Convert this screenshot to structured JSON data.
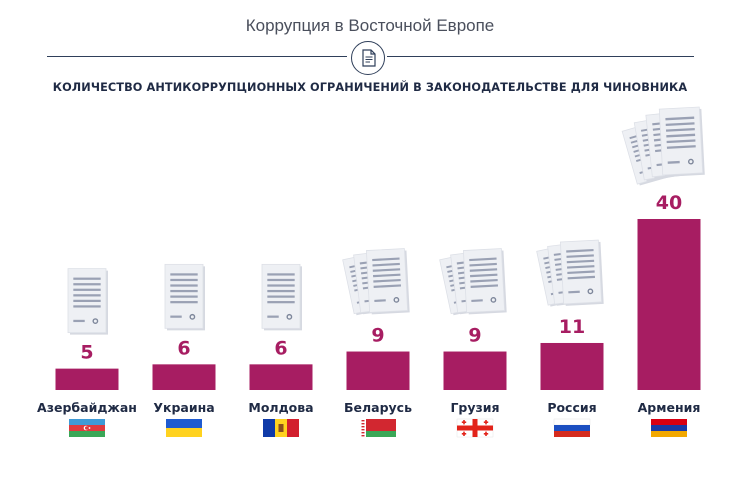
{
  "header": {
    "title": "Коррупция в Восточной Европе",
    "icon": "document-icon"
  },
  "chart_data": {
    "type": "bar",
    "title": "КОЛИЧЕСТВО АНТИКОРРУПЦИОННЫХ ОГРАНИЧЕНИЙ В ЗАКОНОДАТЕЛЬСТВЕ ДЛЯ ЧИНОВНИКА",
    "categories": [
      "Азербайджан",
      "Украина",
      "Молдова",
      "Беларусь",
      "Грузия",
      "Россия",
      "Армения"
    ],
    "values": [
      5,
      6,
      6,
      9,
      9,
      11,
      40
    ],
    "ylim": [
      0,
      40
    ],
    "bar_color": "#a71d62",
    "flag_icons": [
      "azerbaijan-flag-icon",
      "ukraine-flag-icon",
      "moldova-flag-icon",
      "belarus-flag-icon",
      "georgia-flag-icon",
      "russia-flag-icon",
      "armenia-flag-icon"
    ],
    "document_icons": [
      "single-document-icon",
      "single-document-icon",
      "single-document-icon",
      "document-stack-icon",
      "document-stack-icon",
      "document-stack-icon",
      "document-pile-icon"
    ]
  }
}
